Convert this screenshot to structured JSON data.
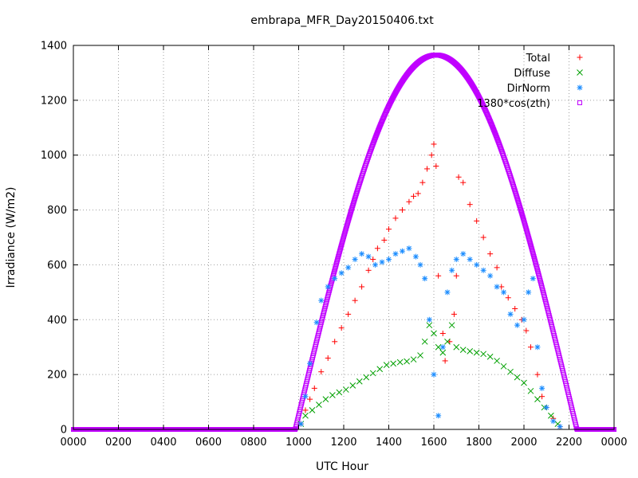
{
  "chart_data": {
    "type": "scatter",
    "title": "embrapa_MFR_Day20150406.txt",
    "xlabel": "UTC Hour",
    "ylabel": "Irradiance (W/m2)",
    "xlim": [
      0,
      24
    ],
    "ylim": [
      0,
      1400
    ],
    "x_ticks": [
      "0000",
      "0200",
      "0400",
      "0600",
      "0800",
      "1000",
      "1200",
      "1400",
      "1600",
      "1800",
      "2000",
      "2200",
      "0000"
    ],
    "y_ticks": [
      "0",
      "200",
      "400",
      "600",
      "800",
      "1000",
      "1200",
      "1400"
    ],
    "grid": true,
    "legend_position": "top-right",
    "series": [
      {
        "name": "Total",
        "color": "#ff0000",
        "marker": "plus",
        "points": [
          [
            10.1,
            20
          ],
          [
            10.3,
            70
          ],
          [
            10.5,
            110
          ],
          [
            10.7,
            150
          ],
          [
            11.0,
            210
          ],
          [
            11.3,
            260
          ],
          [
            11.6,
            320
          ],
          [
            11.9,
            370
          ],
          [
            12.2,
            420
          ],
          [
            12.5,
            470
          ],
          [
            12.8,
            520
          ],
          [
            13.1,
            580
          ],
          [
            13.3,
            620
          ],
          [
            13.5,
            660
          ],
          [
            13.8,
            690
          ],
          [
            14.0,
            730
          ],
          [
            14.3,
            770
          ],
          [
            14.6,
            800
          ],
          [
            14.9,
            830
          ],
          [
            15.1,
            850
          ],
          [
            15.3,
            860
          ],
          [
            15.5,
            900
          ],
          [
            15.7,
            950
          ],
          [
            15.9,
            1000
          ],
          [
            16.0,
            1040
          ],
          [
            16.1,
            960
          ],
          [
            16.2,
            560
          ],
          [
            16.4,
            350
          ],
          [
            16.5,
            250
          ],
          [
            16.7,
            320
          ],
          [
            16.9,
            420
          ],
          [
            17.0,
            560
          ],
          [
            17.1,
            920
          ],
          [
            17.3,
            900
          ],
          [
            17.6,
            820
          ],
          [
            17.9,
            760
          ],
          [
            18.2,
            700
          ],
          [
            18.5,
            640
          ],
          [
            18.8,
            590
          ],
          [
            19.0,
            520
          ],
          [
            19.3,
            480
          ],
          [
            19.6,
            440
          ],
          [
            19.9,
            400
          ],
          [
            20.1,
            360
          ],
          [
            20.3,
            300
          ],
          [
            20.6,
            200
          ],
          [
            20.8,
            120
          ],
          [
            21.0,
            80
          ],
          [
            21.3,
            40
          ],
          [
            21.6,
            10
          ]
        ]
      },
      {
        "name": "Diffuse",
        "color": "#00a000",
        "marker": "cross",
        "points": [
          [
            10.1,
            20
          ],
          [
            10.3,
            50
          ],
          [
            10.6,
            70
          ],
          [
            10.9,
            90
          ],
          [
            11.2,
            110
          ],
          [
            11.5,
            125
          ],
          [
            11.8,
            135
          ],
          [
            12.1,
            145
          ],
          [
            12.4,
            160
          ],
          [
            12.7,
            175
          ],
          [
            13.0,
            190
          ],
          [
            13.3,
            205
          ],
          [
            13.6,
            220
          ],
          [
            13.9,
            235
          ],
          [
            14.2,
            240
          ],
          [
            14.5,
            245
          ],
          [
            14.8,
            248
          ],
          [
            15.1,
            255
          ],
          [
            15.4,
            270
          ],
          [
            15.6,
            320
          ],
          [
            15.8,
            380
          ],
          [
            16.0,
            350
          ],
          [
            16.2,
            300
          ],
          [
            16.4,
            280
          ],
          [
            16.6,
            320
          ],
          [
            16.8,
            380
          ],
          [
            17.0,
            300
          ],
          [
            17.3,
            290
          ],
          [
            17.6,
            285
          ],
          [
            17.9,
            280
          ],
          [
            18.2,
            275
          ],
          [
            18.5,
            265
          ],
          [
            18.8,
            250
          ],
          [
            19.1,
            230
          ],
          [
            19.4,
            210
          ],
          [
            19.7,
            190
          ],
          [
            20.0,
            170
          ],
          [
            20.3,
            140
          ],
          [
            20.6,
            110
          ],
          [
            20.9,
            80
          ],
          [
            21.2,
            50
          ],
          [
            21.5,
            20
          ]
        ]
      },
      {
        "name": "DirNorm",
        "color": "#1a8cff",
        "marker": "star",
        "points": [
          [
            10.1,
            20
          ],
          [
            10.3,
            120
          ],
          [
            10.5,
            240
          ],
          [
            10.8,
            390
          ],
          [
            11.0,
            470
          ],
          [
            11.3,
            520
          ],
          [
            11.6,
            550
          ],
          [
            11.9,
            570
          ],
          [
            12.2,
            590
          ],
          [
            12.5,
            620
          ],
          [
            12.8,
            640
          ],
          [
            13.1,
            630
          ],
          [
            13.4,
            600
          ],
          [
            13.7,
            610
          ],
          [
            14.0,
            620
          ],
          [
            14.3,
            640
          ],
          [
            14.6,
            650
          ],
          [
            14.9,
            660
          ],
          [
            15.2,
            630
          ],
          [
            15.4,
            600
          ],
          [
            15.6,
            550
          ],
          [
            15.8,
            400
          ],
          [
            16.0,
            200
          ],
          [
            16.2,
            50
          ],
          [
            16.4,
            300
          ],
          [
            16.6,
            500
          ],
          [
            16.8,
            580
          ],
          [
            17.0,
            620
          ],
          [
            17.3,
            640
          ],
          [
            17.6,
            620
          ],
          [
            17.9,
            600
          ],
          [
            18.2,
            580
          ],
          [
            18.5,
            560
          ],
          [
            18.8,
            520
          ],
          [
            19.1,
            500
          ],
          [
            19.4,
            420
          ],
          [
            19.7,
            380
          ],
          [
            20.0,
            400
          ],
          [
            20.2,
            500
          ],
          [
            20.4,
            550
          ],
          [
            20.6,
            300
          ],
          [
            20.8,
            150
          ],
          [
            21.0,
            80
          ],
          [
            21.3,
            30
          ],
          [
            21.6,
            10
          ]
        ]
      },
      {
        "name": "1380*cos(zth)",
        "color": "#c000ff",
        "marker": "square",
        "curve": {
          "amplitude": 1365,
          "center": 16.1,
          "half_width": 6.25
        }
      }
    ]
  }
}
